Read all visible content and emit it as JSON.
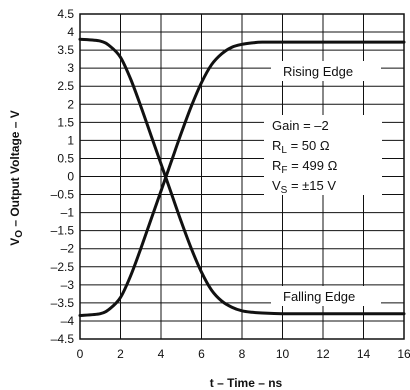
{
  "chart_data": {
    "type": "line",
    "title": "",
    "xlabel": "t – Time – ns",
    "ylabel": {
      "main": "V",
      "sub": "O",
      "rest": " – Output Voltage – V"
    },
    "xlim": [
      0,
      16
    ],
    "ylim": [
      -4.5,
      4.5
    ],
    "xticks": [
      0,
      2,
      4,
      6,
      8,
      10,
      12,
      14,
      16
    ],
    "yticks": [
      4.5,
      4,
      3.5,
      3,
      2.5,
      2,
      1.5,
      1,
      0.5,
      0,
      -0.5,
      -1,
      -1.5,
      -2,
      -2.5,
      -3,
      -3.5,
      -4,
      -4.5
    ],
    "ytick_labels": [
      "4.5",
      "4",
      "3.5",
      "3",
      "2.5",
      "2",
      "1.5",
      "1",
      "0.5",
      "0",
      "–0.5",
      "–1",
      "–1.5",
      "–2",
      "–2.5",
      "–3",
      "–3.5",
      "–4",
      "–4.5"
    ],
    "grid": true,
    "series": [
      {
        "name": "Rising Edge",
        "x": [
          0,
          1,
          1.5,
          2,
          2.5,
          3,
          3.5,
          4,
          4.5,
          5,
          5.5,
          6,
          6.5,
          7,
          7.5,
          8,
          8.5,
          9,
          10,
          12,
          14,
          16
        ],
        "y": [
          -3.85,
          -3.8,
          -3.65,
          -3.35,
          -2.75,
          -2.0,
          -1.2,
          -0.4,
          0.4,
          1.2,
          1.95,
          2.6,
          3.1,
          3.4,
          3.58,
          3.66,
          3.7,
          3.72,
          3.72,
          3.72,
          3.72,
          3.72
        ]
      },
      {
        "name": "Falling Edge",
        "x": [
          0,
          1,
          1.5,
          2,
          2.5,
          3,
          3.5,
          4,
          4.5,
          5,
          5.5,
          6,
          6.5,
          7,
          7.5,
          8,
          8.5,
          9,
          10,
          12,
          14,
          16
        ],
        "y": [
          3.8,
          3.75,
          3.6,
          3.3,
          2.7,
          1.95,
          1.15,
          0.35,
          -0.45,
          -1.25,
          -2.0,
          -2.65,
          -3.15,
          -3.45,
          -3.62,
          -3.72,
          -3.76,
          -3.78,
          -3.8,
          -3.8,
          -3.8,
          -3.8
        ]
      }
    ],
    "annotations": {
      "rising_label": "Rising Edge",
      "falling_label": "Falling Edge",
      "gain": "Gain = –2",
      "rl": {
        "main": "R",
        "sub": "L",
        "rest": " = 50 Ω"
      },
      "rf": {
        "main": "R",
        "sub": "F",
        "rest": " = 499 Ω"
      },
      "vs": {
        "main": "V",
        "sub": "S",
        "rest": " = ±15 V"
      }
    }
  },
  "colors": {
    "line": "#111111",
    "grid": "#111111",
    "background": "#ffffff"
  }
}
